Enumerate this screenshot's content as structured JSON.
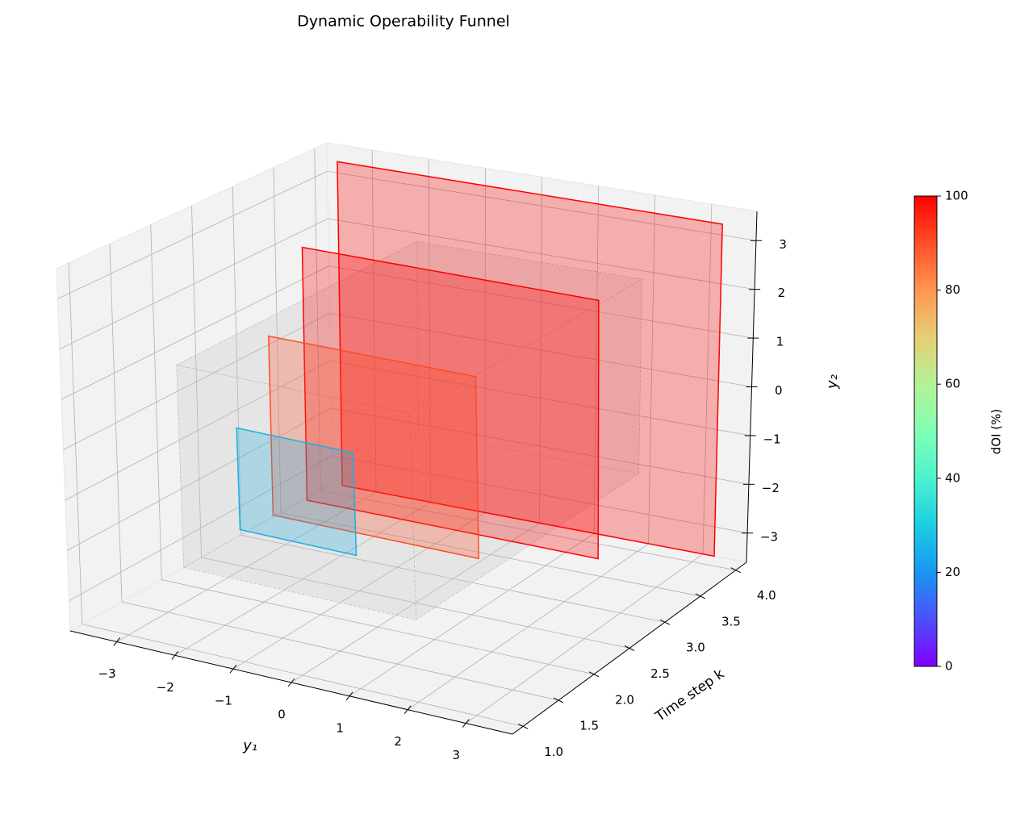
{
  "chart_data": {
    "type": "funnel3d",
    "title": "Dynamic Operability Funnel",
    "xlabel": "y₁",
    "ylabel": "Time step k",
    "zlabel": "y₂",
    "xlim": [
      -3.8,
      3.8
    ],
    "xticks": [
      {
        "value": -3,
        "label": "−3"
      },
      {
        "value": -2,
        "label": "−2"
      },
      {
        "value": -1,
        "label": "−1"
      },
      0,
      1,
      2,
      3
    ],
    "ylim": [
      0.85,
      4.15
    ],
    "yticks": [
      {
        "value": 1,
        "label": "1.0"
      },
      1.5,
      {
        "value": 2,
        "label": "2.0"
      },
      2.5,
      {
        "value": 3,
        "label": "3.0"
      },
      3.5,
      {
        "value": 4,
        "label": "4.0"
      }
    ],
    "zlim": [
      -3.6,
      3.6
    ],
    "zticks": [
      {
        "value": -3,
        "label": "−3"
      },
      {
        "value": -2,
        "label": "−2"
      },
      {
        "value": -1,
        "label": "−1"
      },
      0,
      1,
      2,
      3
    ],
    "grid": true,
    "target": {
      "k": [
        1,
        4
      ],
      "y1": [
        -2,
        2
      ],
      "y2": [
        -2,
        2
      ],
      "color": "#c8c8c8"
    },
    "series": [
      {
        "k": 4,
        "y1": [
          -3.4,
          3.4
        ],
        "y2": [
          -3.4,
          3.4
        ],
        "color": "#ff0000"
      },
      {
        "k": 3,
        "y1": [
          -2.6,
          2.6
        ],
        "y2": [
          -2.6,
          2.6
        ],
        "color": "#ff0000"
      },
      {
        "k": 2,
        "y1": [
          -1.8,
          1.8
        ],
        "y2": [
          -1.8,
          1.8
        ],
        "color": "#ff4a25"
      },
      {
        "k": 1,
        "y1": [
          -1,
          1
        ],
        "y2": [
          -1,
          1
        ],
        "color": "#1ab0e3"
      }
    ],
    "colorbar": {
      "label": "dOI (%)",
      "lim": [
        0,
        100
      ],
      "ticks": [
        0,
        20,
        40,
        60,
        80,
        100
      ],
      "colors": [
        "#8000ff",
        "#4d4ffc",
        "#1a96f2",
        "#1acee3",
        "#4df2ce",
        "#80ffb4",
        "#b3f296",
        "#e6ce74",
        "#ff964f",
        "#ff4f28",
        "#ff0000"
      ]
    }
  }
}
